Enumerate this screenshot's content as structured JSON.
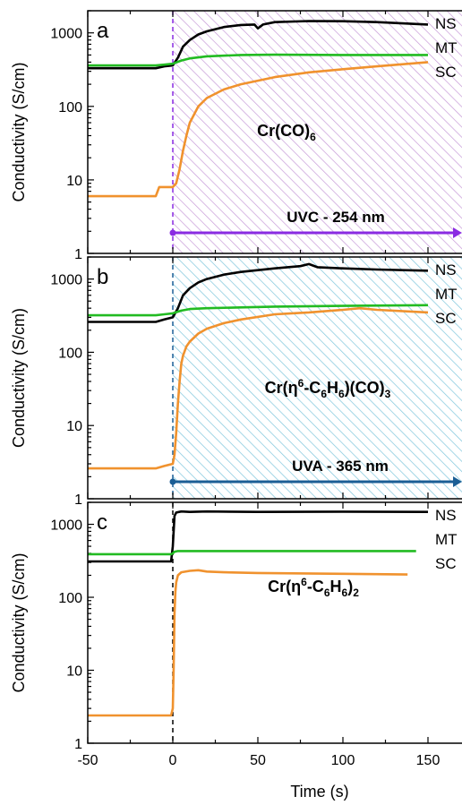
{
  "colors": {
    "NS": "#000000",
    "MT": "#22bb22",
    "SC": "#f0922e",
    "uvc": "#8a2be2",
    "uvc_hatch": "#c79bd8",
    "uva": "#1b5e95",
    "uva_hatch": "#7ec6dc"
  },
  "chart_data": [
    {
      "type": "line",
      "panel": "a",
      "compound": {
        "main": "Cr(CO)",
        "sub": "6"
      },
      "illumination": {
        "label": "UVC - 254 nm",
        "start": 0,
        "color": "uvc"
      },
      "ylabel": "Conductivity (S/cm)",
      "yscale": "log",
      "ylim": [
        1,
        2000
      ],
      "yticks": [
        1,
        10,
        100,
        1000
      ],
      "xlim": [
        -50,
        170
      ],
      "series": [
        {
          "name": "NS",
          "color": "NS",
          "x": [
            -50,
            -10,
            -5,
            0,
            3,
            6,
            10,
            15,
            20,
            30,
            40,
            48,
            50,
            53,
            60,
            80,
            100,
            120,
            150
          ],
          "y": [
            330,
            330,
            350,
            360,
            460,
            650,
            800,
            950,
            1050,
            1200,
            1280,
            1300,
            1150,
            1300,
            1400,
            1450,
            1440,
            1400,
            1300
          ]
        },
        {
          "name": "MT",
          "color": "MT",
          "x": [
            -50,
            -10,
            -5,
            0,
            5,
            10,
            20,
            40,
            60,
            100,
            150
          ],
          "y": [
            360,
            360,
            370,
            380,
            420,
            450,
            480,
            500,
            505,
            500,
            500
          ]
        },
        {
          "name": "SC",
          "color": "SC",
          "x": [
            -50,
            -10,
            -8,
            0,
            2,
            4,
            6,
            8,
            10,
            15,
            20,
            30,
            40,
            60,
            80,
            100,
            120,
            150
          ],
          "y": [
            6,
            6,
            8,
            8,
            9,
            14,
            25,
            40,
            60,
            100,
            130,
            170,
            200,
            250,
            290,
            320,
            350,
            400
          ]
        }
      ]
    },
    {
      "type": "line",
      "panel": "b",
      "compound": {
        "main1": "Cr(η",
        "sup": "6",
        "main2": "-C",
        "sub1": "6",
        "main3": "H",
        "sub2": "6",
        "main4": ")(CO)",
        "sub3": "3"
      },
      "illumination": {
        "label": "UVA - 365 nm",
        "start": 0,
        "color": "uva"
      },
      "ylabel": "Conductivity (S/cm)",
      "yscale": "log",
      "ylim": [
        1,
        2000
      ],
      "yticks": [
        1,
        10,
        100,
        1000
      ],
      "xlim": [
        -50,
        170
      ],
      "series": [
        {
          "name": "NS",
          "color": "NS",
          "x": [
            -50,
            -10,
            -5,
            0,
            3,
            6,
            10,
            15,
            20,
            30,
            40,
            60,
            75,
            80,
            85,
            100,
            120,
            150
          ],
          "y": [
            260,
            260,
            280,
            300,
            400,
            600,
            750,
            900,
            1000,
            1150,
            1250,
            1400,
            1500,
            1600,
            1450,
            1400,
            1350,
            1300
          ]
        },
        {
          "name": "MT",
          "color": "MT",
          "x": [
            -50,
            -10,
            -5,
            0,
            5,
            10,
            20,
            40,
            60,
            100,
            150
          ],
          "y": [
            320,
            320,
            330,
            340,
            370,
            390,
            400,
            410,
            420,
            430,
            440
          ]
        },
        {
          "name": "SC",
          "color": "SC",
          "x": [
            -50,
            -10,
            -5,
            0,
            1,
            2,
            3,
            4,
            5,
            6,
            8,
            10,
            15,
            20,
            30,
            40,
            60,
            70,
            80,
            100,
            110,
            120,
            150
          ],
          "y": [
            2.6,
            2.6,
            2.8,
            3,
            4,
            8,
            20,
            40,
            70,
            90,
            120,
            140,
            180,
            210,
            250,
            280,
            330,
            340,
            350,
            380,
            400,
            380,
            350
          ]
        }
      ]
    },
    {
      "type": "line",
      "panel": "c",
      "compound": {
        "main1": "Cr(η",
        "sup": "6",
        "main2": "-C",
        "sub1": "6",
        "main3": "H",
        "sub2": "6",
        "main4": ")",
        "sub3": "2"
      },
      "illumination": null,
      "ylabel": "Conductivity (S/cm)",
      "xlabel": "Time (s)",
      "yscale": "log",
      "ylim": [
        1,
        2000
      ],
      "yticks": [
        1,
        10,
        100,
        1000
      ],
      "xlim": [
        -50,
        170
      ],
      "xticks": [
        -50,
        0,
        50,
        100,
        150
      ],
      "series": [
        {
          "name": "NS",
          "color": "NS",
          "x": [
            -50,
            -1,
            0,
            1,
            2,
            5,
            10,
            20,
            50,
            100,
            150
          ],
          "y": [
            310,
            310,
            500,
            1300,
            1450,
            1500,
            1480,
            1500,
            1480,
            1490,
            1480
          ]
        },
        {
          "name": "MT",
          "color": "MT",
          "x": [
            -50,
            -1,
            0,
            1,
            3,
            10,
            50,
            100,
            143
          ],
          "y": [
            390,
            390,
            400,
            420,
            430,
            430,
            430,
            430,
            430
          ]
        },
        {
          "name": "SC",
          "color": "SC",
          "x": [
            -50,
            -1,
            0,
            0.5,
            1,
            1.5,
            2,
            3,
            5,
            10,
            15,
            20,
            30,
            50,
            100,
            138
          ],
          "y": [
            2.4,
            2.4,
            3,
            10,
            60,
            120,
            160,
            200,
            220,
            230,
            235,
            225,
            220,
            215,
            210,
            205
          ]
        }
      ]
    }
  ]
}
